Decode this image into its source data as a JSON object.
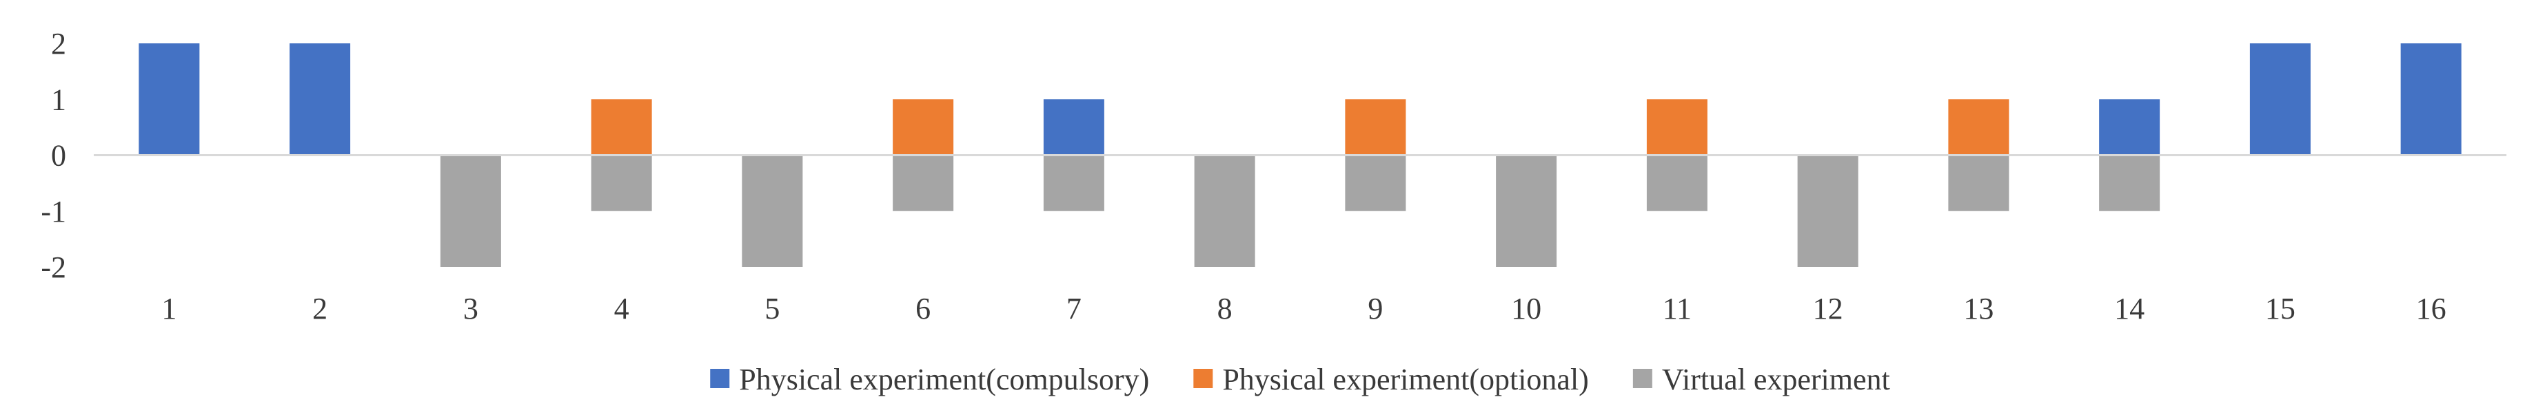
{
  "chart_data": {
    "type": "bar",
    "categories": [
      "1",
      "2",
      "3",
      "4",
      "5",
      "6",
      "7",
      "8",
      "9",
      "10",
      "11",
      "12",
      "13",
      "14",
      "15",
      "16"
    ],
    "series": [
      {
        "name": "Physical experiment(compulsory)",
        "color": "#4472C4",
        "values": [
          2,
          2,
          0,
          0,
          0,
          0,
          1,
          0,
          0,
          0,
          0,
          0,
          0,
          1,
          2,
          2
        ]
      },
      {
        "name": "Physical experiment(optional)",
        "color": "#ED7D31",
        "values": [
          0,
          0,
          0,
          1,
          0,
          1,
          0,
          0,
          1,
          0,
          1,
          0,
          1,
          0,
          0,
          0
        ]
      },
      {
        "name": "Virtual experiment",
        "color": "#A5A5A5",
        "values": [
          0,
          0,
          -2,
          -1,
          -2,
          -1,
          -1,
          -2,
          -1,
          -2,
          -1,
          -2,
          -1,
          -1,
          0,
          0
        ]
      }
    ],
    "ylim": [
      -2,
      2
    ],
    "yticks": [
      "2",
      "1",
      "0",
      "-1",
      "-2"
    ],
    "grid": false,
    "legend": "bottom",
    "stacked": true
  }
}
